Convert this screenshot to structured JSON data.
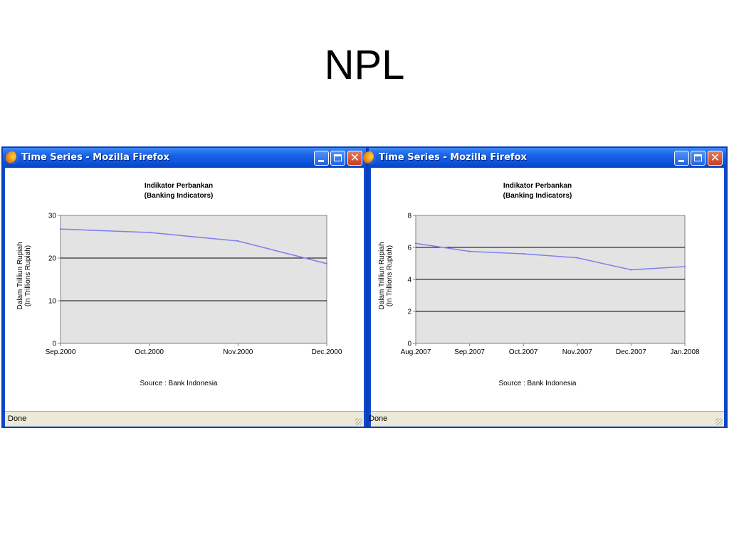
{
  "slide": {
    "title": "NPL"
  },
  "windows": [
    {
      "title": "Time Series - Mozilla Firefox",
      "status": "Done",
      "chart_data": {
        "type": "line",
        "title": "Indikator Perbankan",
        "subtitle": "(Banking Indicators)",
        "ylabel": "Dalam Trilliun Rupiah",
        "ylabel2": "(In Trillions Rupiah)",
        "xlabel": "",
        "source": "Source : Bank Indonesia",
        "categories": [
          "Sep.2000",
          "Oct.2000",
          "Nov.2000",
          "Dec.2000"
        ],
        "series": [
          {
            "values": [
              26.8,
              26.0,
              24.0,
              18.7
            ]
          }
        ],
        "ylim": [
          0,
          30
        ],
        "yticks": [
          "0",
          "10",
          "20",
          "30"
        ],
        "grid": true,
        "line_color": "#8080f0",
        "plot_bg": "#e3e3e3"
      }
    },
    {
      "title": "Time Series - Mozilla Firefox",
      "status": "Done",
      "chart_data": {
        "type": "line",
        "title": "Indikator Perbankan",
        "subtitle": "(Banking Indicators)",
        "ylabel": "Dalam Trilliun Rupiah",
        "ylabel2": "(In Trillions Rupiah)",
        "xlabel": "",
        "source": "Source : Bank Indonesia",
        "categories": [
          "Aug.2007",
          "Sep.2007",
          "Oct.2007",
          "Nov.2007",
          "Dec.2007",
          "Jan.2008"
        ],
        "series": [
          {
            "values": [
              6.25,
              5.75,
              5.6,
              5.35,
              4.6,
              4.8
            ]
          }
        ],
        "ylim": [
          0,
          8
        ],
        "yticks": [
          "0",
          "2",
          "4",
          "6",
          "8"
        ],
        "grid": true,
        "line_color": "#8080f0",
        "plot_bg": "#e3e3e3"
      }
    }
  ]
}
